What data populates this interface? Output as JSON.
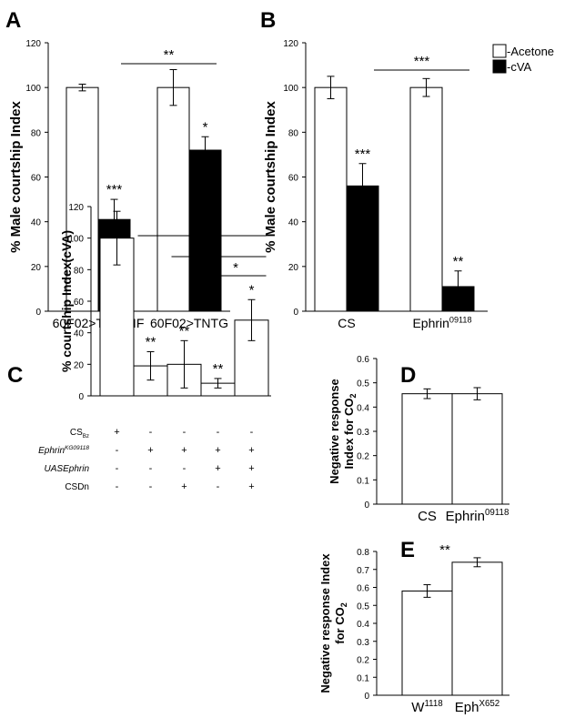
{
  "chart_data": [
    {
      "panel": "A",
      "type": "bar",
      "ylabel": "% Male courtship Index",
      "ylim": [
        0,
        120
      ],
      "yticks": [
        0,
        20,
        40,
        60,
        80,
        100,
        120
      ],
      "categories": [
        "60F02>TNT-VIF",
        "60F02>TNTG"
      ],
      "series": [
        {
          "values": [
            100,
            100
          ],
          "errors": [
            1.5,
            8
          ],
          "color": "#ffffff"
        },
        {
          "values": [
            41,
            72
          ],
          "errors": [
            9,
            6
          ],
          "color": "#000000"
        }
      ],
      "annotations": {
        "bar_stars": [
          [
            "",
            ""
          ],
          [
            "***",
            "*"
          ]
        ],
        "bracket": {
          "from": 1,
          "to": 1,
          "text": "**"
        }
      }
    },
    {
      "panel": "B",
      "type": "bar",
      "ylabel": "% Male courtship Index",
      "ylim": [
        0,
        120
      ],
      "yticks": [
        0,
        20,
        40,
        60,
        80,
        100,
        120
      ],
      "categories": [
        "CS",
        "Ephrin09118"
      ],
      "category_labels": [
        {
          "base": "CS",
          "sup": ""
        },
        {
          "base": "Ephrin",
          "sup": "09118"
        }
      ],
      "series": [
        {
          "name": "-Acetone",
          "values": [
            100,
            100
          ],
          "errors": [
            5,
            4
          ],
          "color": "#ffffff"
        },
        {
          "name": "-cVA",
          "values": [
            56,
            11
          ],
          "errors": [
            10,
            7
          ],
          "color": "#000000"
        }
      ],
      "legend": "top-right",
      "annotations": {
        "bar_stars": [
          [
            "",
            ""
          ],
          [
            "***",
            "**"
          ]
        ],
        "bracket": {
          "text": "***"
        }
      }
    },
    {
      "panel": "C",
      "type": "bar",
      "ylabel": "% courtship Index(cVA)",
      "ylim": [
        0,
        120
      ],
      "yticks": [
        0,
        20,
        40,
        60,
        80,
        100,
        120
      ],
      "values": [
        100,
        19,
        20,
        8,
        48
      ],
      "errors": [
        17,
        9,
        15,
        3,
        13
      ],
      "bar_stars": [
        "",
        "**",
        "**",
        "**",
        "*"
      ],
      "brackets": [
        {
          "from": 1,
          "to": 4,
          "text": "**"
        },
        {
          "from": 2,
          "to": 4,
          "text": "*"
        },
        {
          "from": 3,
          "to": 4,
          "text": "*"
        }
      ],
      "genotype_table": [
        {
          "label": "CSBz",
          "base": "CS",
          "sub": "Bz",
          "sup": "",
          "italic": false,
          "signs": [
            "+",
            "-",
            "-",
            "-",
            "-"
          ]
        },
        {
          "label": "EphrinKG09118",
          "base": "Ephrin",
          "sub": "",
          "sup": "KG09118",
          "italic": true,
          "signs": [
            "-",
            "+",
            "+",
            "+",
            "+"
          ]
        },
        {
          "label": "UASEphrin",
          "base": "UASEphrin",
          "sub": "",
          "sup": "",
          "italic": true,
          "signs": [
            "-",
            "-",
            "-",
            "+",
            "+"
          ]
        },
        {
          "label": "CSDn",
          "base": "CSDn",
          "sub": "",
          "sup": "",
          "italic": false,
          "signs": [
            "-",
            "-",
            "+",
            "-",
            "+"
          ]
        }
      ]
    },
    {
      "panel": "D",
      "type": "bar",
      "ylabel_lines": [
        "Negative response",
        "Index for CO2"
      ],
      "ylim": [
        0,
        0.6
      ],
      "yticks": [
        0,
        0.1,
        0.2,
        0.3,
        0.4,
        0.5,
        0.6
      ],
      "ytick_labels": [
        "0",
        "0.1",
        "0.2",
        "0.3",
        "0.4",
        "0.5",
        "0.6"
      ],
      "categories": [
        "CS",
        "Ephrin09118"
      ],
      "category_labels": [
        {
          "base": "CS",
          "sup": ""
        },
        {
          "base": "Ephrin",
          "sup": "09118"
        }
      ],
      "values": [
        0.455,
        0.455
      ],
      "errors": [
        0.02,
        0.025
      ]
    },
    {
      "panel": "E",
      "type": "bar",
      "ylabel_lines": [
        "Negative response Index",
        "for CO2"
      ],
      "ylim": [
        0,
        0.8
      ],
      "yticks": [
        0,
        0.1,
        0.2,
        0.3,
        0.4,
        0.5,
        0.6,
        0.7,
        0.8
      ],
      "ytick_labels": [
        "0",
        "0.1",
        "0.2",
        "0.3",
        "0.4",
        "0.5",
        "0.6",
        "0.7",
        "0.8"
      ],
      "categories": [
        "W1118",
        "EphX652"
      ],
      "category_labels": [
        {
          "base": "W",
          "sup": "1118"
        },
        {
          "base": "Eph",
          "sup": "X652"
        }
      ],
      "values": [
        0.58,
        0.74
      ],
      "errors": [
        0.035,
        0.025
      ],
      "annotation": "**"
    }
  ]
}
